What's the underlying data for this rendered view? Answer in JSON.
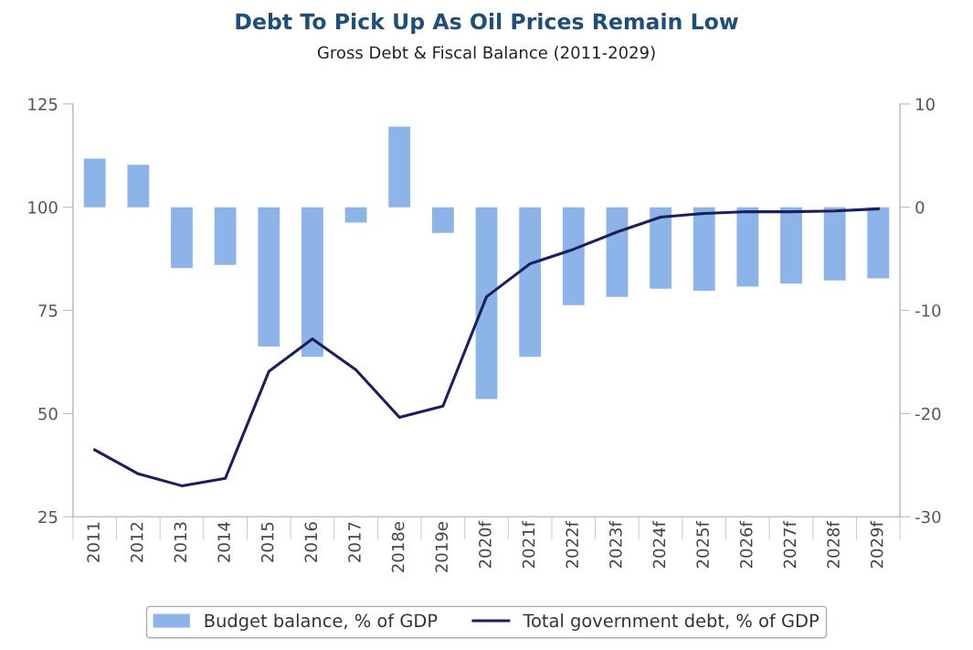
{
  "chart_data": {
    "type": "bar",
    "title": "Debt To Pick Up As Oil Prices Remain Low",
    "subtitle": "Gross Debt & Fiscal Balance (2011-2029)",
    "categories": [
      "2011",
      "2012",
      "2013",
      "2014",
      "2015",
      "2016",
      "2017",
      "2018e",
      "2019e",
      "2020f",
      "2021f",
      "2022f",
      "2023f",
      "2024f",
      "2025f",
      "2026f",
      "2027f",
      "2028f",
      "2029f"
    ],
    "series": [
      {
        "name": "Budget balance, % of GDP",
        "axis": "y2",
        "color": "#8db4e8",
        "values": [
          4.7,
          4.1,
          -5.9,
          -5.6,
          -13.5,
          -14.5,
          -1.5,
          7.8,
          -2.5,
          -18.6,
          -14.5,
          -9.5,
          -8.7,
          -7.9,
          -8.1,
          -7.7,
          -7.4,
          -7.1,
          -6.9
        ]
      },
      {
        "name": "Total government debt, % of GDP",
        "type": "line",
        "color": "#1a1f5e",
        "values": [
          41.2,
          35.4,
          32.5,
          34.3,
          60.2,
          68.1,
          60.6,
          49.1,
          51.8,
          78.3,
          86.3,
          89.8,
          94.0,
          97.6,
          98.5,
          98.9,
          98.9,
          99.1,
          99.6
        ]
      }
    ],
    "ylim": [
      25,
      125
    ],
    "yticks": [
      25,
      50,
      75,
      100,
      125
    ],
    "y2lim": [
      -30,
      10
    ],
    "y2ticks": [
      -30,
      -20,
      -10,
      0,
      10
    ],
    "grid": false,
    "legend": "bottom",
    "marker": "none",
    "line_style": "solid"
  }
}
